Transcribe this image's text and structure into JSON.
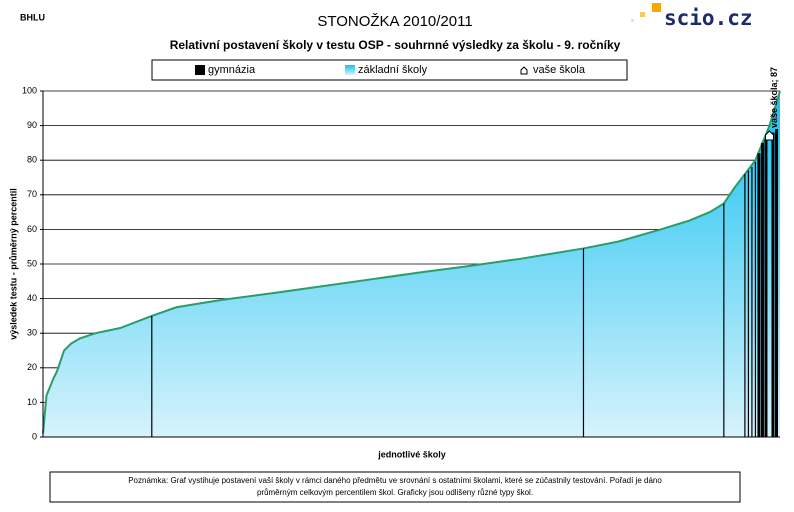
{
  "header_code": "BHLU",
  "logo": "scio.cz",
  "chart_data": {
    "type": "area",
    "title": "STONOŽKA 2010/2011",
    "subtitle": "Relativní postavení školy v testu OSP - souhrnné výsledky za školu - 9. ročníky",
    "x_label": "jednotlivé školy",
    "y_label": "výsledek testu - průměrný percentil",
    "xlim": [
      0,
      210
    ],
    "ylim": [
      0,
      100
    ],
    "yticks": [
      0,
      10,
      20,
      30,
      40,
      50,
      60,
      70,
      80,
      90,
      100
    ],
    "grid": true,
    "series": [
      {
        "name": "gymnázia",
        "type": "bar",
        "color": "#000000",
        "x": [
          31,
          154,
          194,
          200,
          201,
          202,
          203,
          204,
          205,
          206,
          208,
          209
        ],
        "values": [
          35,
          54.5,
          67.5,
          76,
          77,
          78,
          79.5,
          82,
          85,
          86,
          88,
          89
        ]
      },
      {
        "name": "základní školy",
        "type": "area",
        "color": "#1ec3f0",
        "line_color": "#2a9d6a",
        "x": [
          0,
          1,
          3,
          4,
          5,
          6,
          8,
          10.5,
          15,
          22,
          31,
          38,
          50,
          65,
          79,
          93,
          107,
          122,
          136,
          154,
          164,
          176,
          184,
          190,
          194,
          197,
          200,
          203,
          205,
          207,
          210
        ],
        "values": [
          1,
          12,
          17,
          19,
          22,
          25,
          27,
          28.5,
          30,
          31.5,
          35,
          37.5,
          39.5,
          41.5,
          43.5,
          45.5,
          47.5,
          49.5,
          51.5,
          54.5,
          56.5,
          60,
          62.5,
          65,
          67.5,
          72,
          76,
          80,
          85,
          90,
          100
        ]
      },
      {
        "name": "vaše škola",
        "type": "marker",
        "color": "#ffffff",
        "x": [
          207
        ],
        "values": [
          87
        ],
        "value_labels": [
          "vaše škola; 87"
        ]
      }
    ],
    "note": [
      "Poznámka: Graf vystihuje postavení vaší školy v rámci daného předmětu ve srovnání s ostatními školami, které se zúčastnily testování. Pořadí je dáno",
      "průměrným celkovým percentilem škol. Graficky jsou odlišeny různé typy škol."
    ]
  }
}
